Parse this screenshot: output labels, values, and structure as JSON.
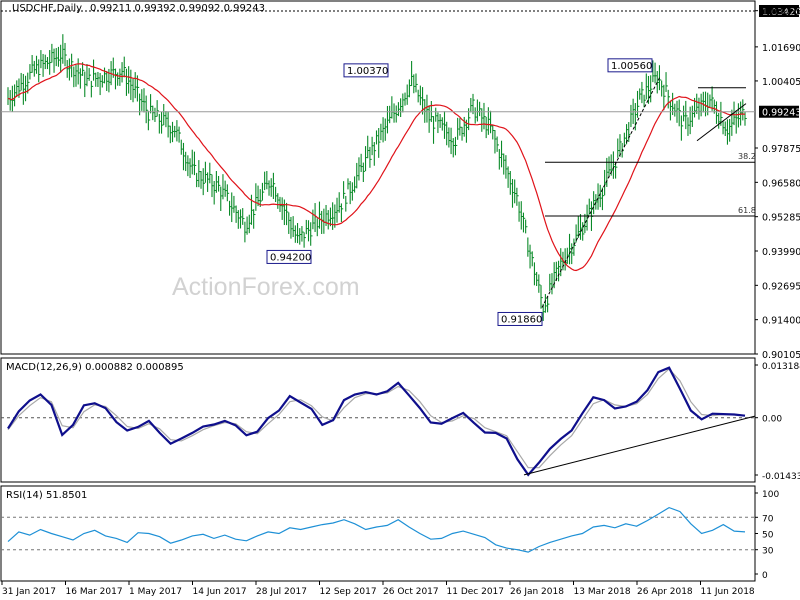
{
  "chart_data": [
    {
      "type": "candlestick",
      "symbol_label": "USDCHF,Daily",
      "ohlc_label": "0.99211 0.99392 0.99092 0.99243",
      "ylim": [
        0.90105,
        1.0342
      ],
      "y_ticks": [
        "1.03420",
        "1.03055",
        "1.01690",
        "1.00405",
        "0.99243",
        "0.97875",
        "0.96580",
        "0.95285",
        "0.93990",
        "0.92695",
        "0.91400",
        "0.90105"
      ],
      "current_price": 0.99243,
      "ma_color": "#e0131a",
      "callouts": [
        {
          "label": "1.00370",
          "date": "late Oct 2017",
          "value": 1.0037
        },
        {
          "label": "0.94200",
          "date": "mid Aug 2017",
          "value": 0.942
        },
        {
          "label": "1.00560",
          "date": "late Apr 2018",
          "value": 1.0056
        },
        {
          "label": "0.91860",
          "date": "mid Feb 2018",
          "value": 0.9186
        }
      ],
      "fib_levels": [
        {
          "label": "38.2",
          "value": 0.9734
        },
        {
          "label": "61.8",
          "value": 0.9531
        }
      ],
      "watermark": "ActionForex.com"
    },
    {
      "type": "line",
      "title": "MACD(12,26,9) 0.000882 0.000895",
      "ylim": [
        -0.014339,
        0.013184
      ],
      "y_ticks": [
        "0.013184",
        "0.00",
        "-0.014339"
      ],
      "series": [
        {
          "color": "#0f0f8c",
          "values": [
            -0.0027,
            0.0016,
            0.0043,
            0.0058,
            0.0032,
            -0.0043,
            -0.0018,
            0.0031,
            0.0036,
            0.0024,
            -0.0011,
            -0.0032,
            -0.0023,
            -0.0008,
            -0.0038,
            -0.0065,
            -0.0052,
            -0.0038,
            -0.0022,
            -0.0017,
            -0.0008,
            -0.0019,
            -0.0044,
            -0.0035,
            -0.0001,
            0.0018,
            0.0054,
            0.0038,
            0.0022,
            -0.0018,
            -0.0006,
            0.0044,
            0.0058,
            0.0064,
            0.0058,
            0.0066,
            0.0087,
            0.0056,
            0.0024,
            -0.0012,
            -0.0015,
            -0.0001,
            0.0012,
            -0.0013,
            -0.0037,
            -0.0038,
            -0.0052,
            -0.0104,
            -0.0143,
            -0.0112,
            -0.0078,
            -0.0053,
            -0.0032,
            0.0011,
            0.0051,
            0.0044,
            0.0023,
            0.0028,
            0.004,
            0.0069,
            0.0114,
            0.0125,
            0.0072,
            0.0018,
            -0.0004,
            0.001,
            0.0009,
            0.0008,
            0.0005
          ]
        },
        {
          "color": "#a8a8a8",
          "values": [
            -0.003,
            0.0005,
            0.003,
            0.005,
            0.004,
            -0.002,
            -0.0025,
            0.0015,
            0.0032,
            0.0028,
            0.0005,
            -0.0022,
            -0.0027,
            -0.0015,
            -0.0028,
            -0.0055,
            -0.0058,
            -0.0045,
            -0.003,
            -0.002,
            -0.0012,
            -0.0015,
            -0.0035,
            -0.004,
            -0.0015,
            0.0008,
            0.004,
            0.0045,
            0.003,
            0.0002,
            -0.0008,
            0.0025,
            0.005,
            0.006,
            0.006,
            0.0062,
            0.0078,
            0.0068,
            0.004,
            0.0005,
            -0.0012,
            -0.0008,
            0.0005,
            -0.0002,
            -0.0025,
            -0.0035,
            -0.0045,
            -0.0085,
            -0.0125,
            -0.0125,
            -0.0095,
            -0.0068,
            -0.0045,
            -0.0005,
            0.0035,
            0.0045,
            0.0032,
            0.0028,
            0.0035,
            0.0058,
            0.0098,
            0.0122,
            0.0092,
            0.004,
            0.0008,
            0.0005,
            0.0008,
            0.0008,
            0.0006
          ]
        }
      ]
    },
    {
      "type": "line",
      "title": "RSI(14) 51.8501",
      "ylim": [
        0,
        100
      ],
      "y_ticks": [
        "100",
        "70",
        "50",
        "30",
        "0"
      ],
      "series": [
        {
          "color": "#1e90d6",
          "values": [
            40,
            52,
            48,
            55,
            50,
            46,
            42,
            50,
            54,
            47,
            44,
            39,
            51,
            50,
            46,
            38,
            42,
            47,
            49,
            44,
            48,
            43,
            41,
            47,
            52,
            50,
            57,
            55,
            58,
            61,
            63,
            67,
            62,
            55,
            58,
            60,
            67,
            58,
            50,
            43,
            44,
            50,
            53,
            49,
            45,
            36,
            32,
            30,
            27,
            34,
            39,
            43,
            47,
            50,
            58,
            60,
            57,
            62,
            59,
            66,
            74,
            82,
            77,
            62,
            50,
            54,
            61,
            53,
            52
          ]
        }
      ]
    }
  ],
  "x_axis": {
    "labels": [
      "31 Jan 2017",
      "16 Mar 2017",
      "1 May 2017",
      "14 Jun 2017",
      "28 Jul 2017",
      "12 Sep 2017",
      "26 Oct 2017",
      "11 Dec 2017",
      "26 Jan 2018",
      "13 Mar 2018",
      "26 Apr 2018",
      "11 Jun 2018"
    ]
  }
}
